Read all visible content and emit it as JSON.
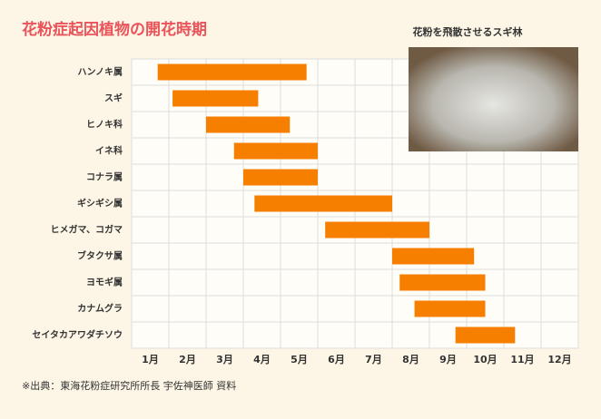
{
  "chart_data": {
    "type": "gantt",
    "title": "花粉症起因植物の開花時期",
    "photo_caption": "花粉を飛散させるスギ林",
    "source": "※出典：東海花粉症研究所所長 宇佐神医師 資料",
    "categories": [
      "ハンノキ属",
      "スギ",
      "ヒノキ科",
      "イネ科",
      "コナラ属",
      "ギシギシ属",
      "ヒメガマ、コガマ",
      "ブタクサ属",
      "ヨモギ属",
      "カナムグラ",
      "セイタカアワダチソウ"
    ],
    "start": [
      0.7,
      1.1,
      2.0,
      2.75,
      3.0,
      3.3,
      5.2,
      7.0,
      7.2,
      7.6,
      8.7
    ],
    "end": [
      4.7,
      3.4,
      4.25,
      5.0,
      5.0,
      7.0,
      8.0,
      9.2,
      9.5,
      9.5,
      10.3
    ],
    "color": "#f77f00",
    "xlim": [
      0,
      12
    ],
    "xticks": [
      {
        "value": 0.5,
        "label": "1月"
      },
      {
        "value": 1.5,
        "label": "2月"
      },
      {
        "value": 2.5,
        "label": "3月"
      },
      {
        "value": 3.5,
        "label": "4月"
      },
      {
        "value": 4.5,
        "label": "5月"
      },
      {
        "value": 5.5,
        "label": "6月"
      },
      {
        "value": 6.5,
        "label": "7月"
      },
      {
        "value": 7.5,
        "label": "8月"
      },
      {
        "value": 8.5,
        "label": "9月"
      },
      {
        "value": 9.5,
        "label": "10月"
      },
      {
        "value": 10.5,
        "label": "11月"
      },
      {
        "value": 11.5,
        "label": "12月"
      }
    ],
    "grid": true
  }
}
